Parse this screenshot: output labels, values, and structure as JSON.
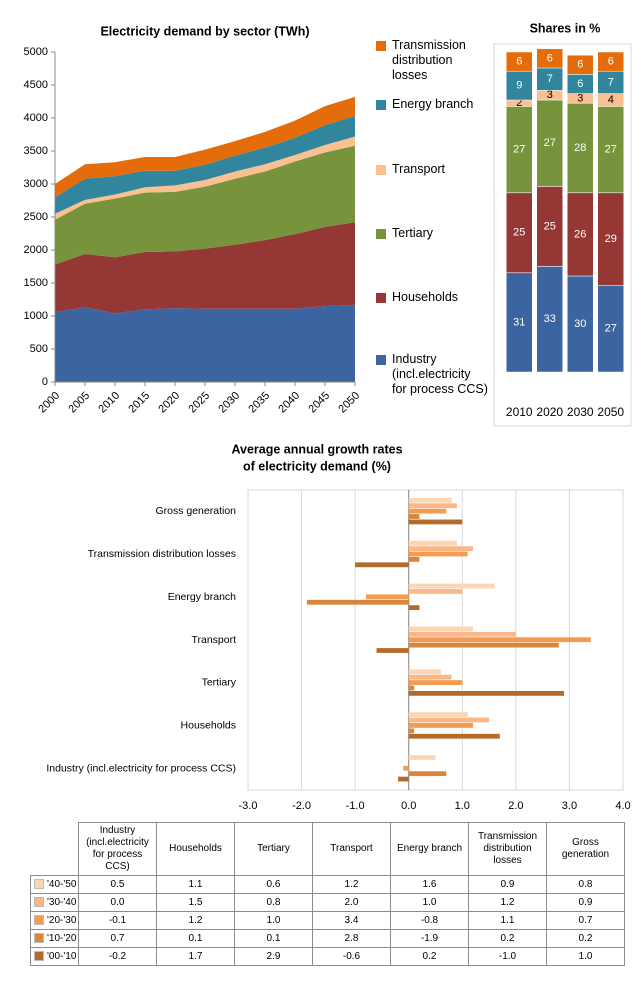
{
  "chart_data": [
    {
      "type": "area",
      "title": "Electricity demand by sector (TWh)",
      "x": [
        2000,
        2005,
        2010,
        2015,
        2020,
        2025,
        2030,
        2035,
        2040,
        2045,
        2050
      ],
      "xlim": [
        2000,
        2050
      ],
      "xticks": [
        2000,
        2005,
        2010,
        2015,
        2020,
        2025,
        2030,
        2035,
        2040,
        2045,
        2050
      ],
      "ylim": [
        0,
        5000
      ],
      "yticks": [
        0,
        500,
        1000,
        1500,
        2000,
        2500,
        3000,
        3500,
        4000,
        4500,
        5000
      ],
      "stacked": true,
      "grid": false,
      "series": [
        {
          "name": "Industry (incl.electricity for process CCS)",
          "color": "#3c64a0",
          "values": [
            1060,
            1130,
            1040,
            1100,
            1120,
            1110,
            1110,
            1110,
            1110,
            1150,
            1170
          ]
        },
        {
          "name": "Households",
          "color": "#953735",
          "values": [
            720,
            810,
            850,
            870,
            860,
            910,
            970,
            1040,
            1130,
            1200,
            1250
          ]
        },
        {
          "name": "Tertiary",
          "color": "#77933c",
          "values": [
            680,
            760,
            890,
            900,
            900,
            940,
            1000,
            1040,
            1100,
            1130,
            1160
          ]
        },
        {
          "name": "Transport",
          "color": "#fac090",
          "values": [
            90,
            60,
            60,
            80,
            100,
            100,
            110,
            110,
            100,
            110,
            140
          ]
        },
        {
          "name": "Energy branch",
          "color": "#31859c",
          "values": [
            250,
            320,
            280,
            250,
            220,
            230,
            240,
            250,
            260,
            300,
            310
          ]
        },
        {
          "name": "Transmission distribution losses",
          "color": "#e46c0a",
          "values": [
            200,
            220,
            210,
            210,
            210,
            230,
            220,
            240,
            260,
            290,
            290
          ]
        }
      ]
    },
    {
      "type": "stacked_bar",
      "title": "Shares in %",
      "categories": [
        "2010",
        "2020",
        "2030",
        "2050"
      ],
      "ylim": [
        0,
        100
      ],
      "series": [
        {
          "color": "#3c64a0",
          "values": [
            31,
            33,
            30,
            27
          ]
        },
        {
          "color": "#953735",
          "values": [
            25,
            25,
            26,
            29
          ]
        },
        {
          "color": "#77933c",
          "values": [
            27,
            27,
            28,
            27
          ]
        },
        {
          "color": "#fac090",
          "values": [
            2,
            3,
            3,
            4
          ]
        },
        {
          "color": "#31859c",
          "values": [
            9,
            7,
            6,
            7
          ]
        },
        {
          "color": "#e46c0a",
          "values": [
            6,
            6,
            6,
            6
          ]
        }
      ]
    },
    {
      "type": "hbar",
      "title": [
        "Average annual growth rates",
        "of electricity demand (%)"
      ],
      "categories": [
        "Industry (incl.electricity for process CCS)",
        "Households",
        "Tertiary",
        "Transport",
        "Energy branch",
        "Transmission distribution losses",
        "Gross generation"
      ],
      "xlim": [
        -3,
        4
      ],
      "xticks": [
        {
          "value": -3,
          "label": "-3.0"
        },
        {
          "value": -2,
          "label": "-2.0"
        },
        {
          "value": -1,
          "label": "-1.0"
        },
        {
          "value": 0,
          "label": "0.0"
        },
        {
          "value": 1,
          "label": "1.0"
        },
        {
          "value": 2,
          "label": "2.0"
        },
        {
          "value": 3,
          "label": "3.0"
        },
        {
          "value": 4,
          "label": "4.0"
        }
      ],
      "grid": true,
      "series": [
        {
          "name": "'40-'50",
          "color": "#fcd5b4",
          "values": [
            0.5,
            1.1,
            0.6,
            1.2,
            1.6,
            0.9,
            0.8
          ],
          "value_labels": [
            "0.5",
            "1.1",
            "0.6",
            "1.2",
            "1.6",
            "0.9",
            "0.8"
          ]
        },
        {
          "name": "'30-'40",
          "color": "#fab889",
          "values": [
            0.0,
            1.5,
            0.8,
            2.0,
            1.0,
            1.2,
            0.9
          ],
          "value_labels": [
            "0.0",
            "1.5",
            "0.8",
            "2.0",
            "1.0",
            "1.2",
            "0.9"
          ]
        },
        {
          "name": "'20-'30",
          "color": "#f59a4e",
          "values": [
            -0.1,
            1.2,
            1.0,
            3.4,
            -0.8,
            1.1,
            0.7
          ],
          "value_labels": [
            "-0.1",
            "1.2",
            "1.0",
            "3.4",
            "-0.8",
            "1.1",
            "0.7"
          ]
        },
        {
          "name": "'10-'20",
          "color": "#d9853b",
          "values": [
            0.7,
            0.1,
            0.1,
            2.8,
            -1.9,
            0.2,
            0.2
          ],
          "value_labels": [
            "0.7",
            "0.1",
            "0.1",
            "2.8",
            "-1.9",
            "0.2",
            "0.2"
          ]
        },
        {
          "name": "'00-'10",
          "color": "#b36b2c",
          "values": [
            -0.2,
            1.7,
            2.9,
            -0.6,
            0.2,
            -1.0,
            1.0
          ],
          "value_labels": [
            "-0.2",
            "1.7",
            "2.9",
            "-0.6",
            "0.2",
            "-1.0",
            "1.0"
          ]
        }
      ]
    }
  ]
}
